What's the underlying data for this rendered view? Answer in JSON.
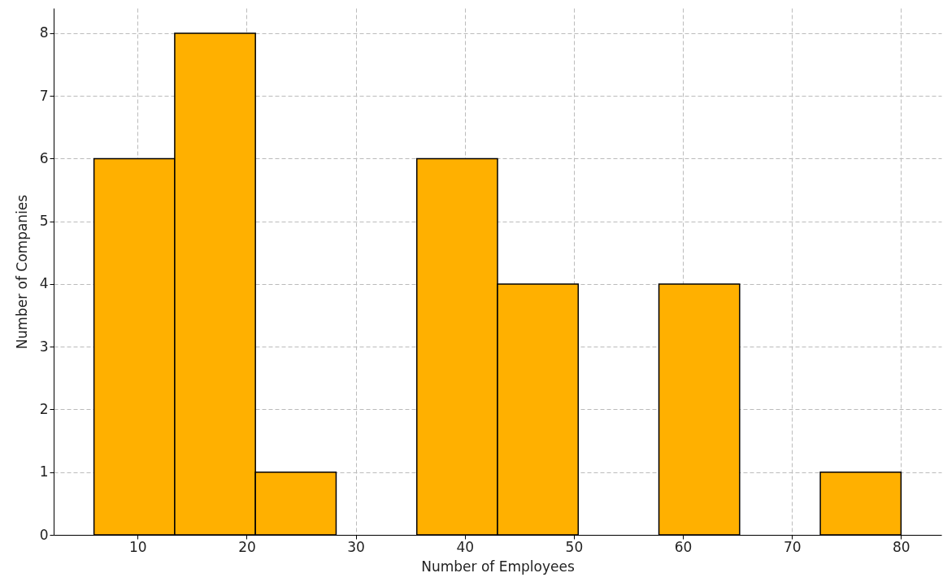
{
  "chart_data": {
    "type": "histogram",
    "xlabel": "Number of Employees",
    "ylabel": "Number of Companies",
    "bins": [
      6,
      13.4,
      20.8,
      28.2,
      35.6,
      43,
      50.4,
      57.8,
      65.2,
      72.6,
      80
    ],
    "values": [
      6,
      8,
      1,
      0,
      6,
      4,
      0,
      4,
      0,
      1
    ],
    "color": "#ffb000",
    "xlim": [
      2.3,
      83.7
    ],
    "xticks": [
      10,
      20,
      30,
      40,
      50,
      60,
      70,
      80
    ],
    "ylim": [
      0,
      8.4
    ],
    "yticks": [
      0,
      1,
      2,
      3,
      4,
      5,
      6,
      7,
      8
    ],
    "grid": true
  }
}
